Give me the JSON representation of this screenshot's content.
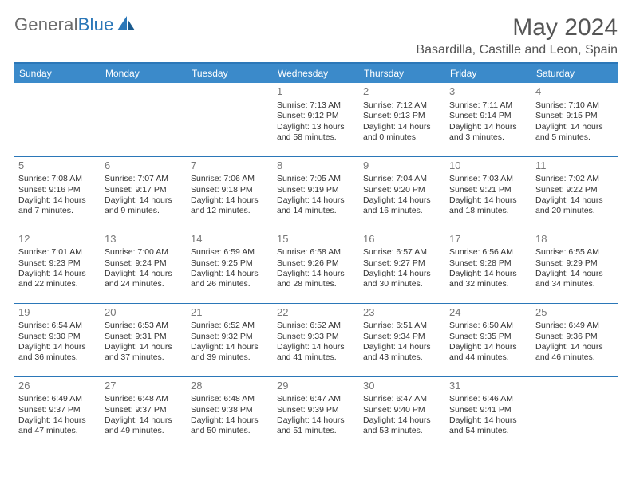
{
  "logo": {
    "text1": "General",
    "text2": "Blue"
  },
  "title": "May 2024",
  "location": "Basardilla, Castille and Leon, Spain",
  "colors": {
    "accent": "#3b8aca",
    "rule": "#2b77b8",
    "text": "#333333",
    "muted": "#777777"
  },
  "day_headers": [
    "Sunday",
    "Monday",
    "Tuesday",
    "Wednesday",
    "Thursday",
    "Friday",
    "Saturday"
  ],
  "weeks": [
    [
      null,
      null,
      null,
      {
        "d": "1",
        "sr": "Sunrise: 7:13 AM",
        "ss": "Sunset: 9:12 PM",
        "dl1": "Daylight: 13 hours",
        "dl2": "and 58 minutes."
      },
      {
        "d": "2",
        "sr": "Sunrise: 7:12 AM",
        "ss": "Sunset: 9:13 PM",
        "dl1": "Daylight: 14 hours",
        "dl2": "and 0 minutes."
      },
      {
        "d": "3",
        "sr": "Sunrise: 7:11 AM",
        "ss": "Sunset: 9:14 PM",
        "dl1": "Daylight: 14 hours",
        "dl2": "and 3 minutes."
      },
      {
        "d": "4",
        "sr": "Sunrise: 7:10 AM",
        "ss": "Sunset: 9:15 PM",
        "dl1": "Daylight: 14 hours",
        "dl2": "and 5 minutes."
      }
    ],
    [
      {
        "d": "5",
        "sr": "Sunrise: 7:08 AM",
        "ss": "Sunset: 9:16 PM",
        "dl1": "Daylight: 14 hours",
        "dl2": "and 7 minutes."
      },
      {
        "d": "6",
        "sr": "Sunrise: 7:07 AM",
        "ss": "Sunset: 9:17 PM",
        "dl1": "Daylight: 14 hours",
        "dl2": "and 9 minutes."
      },
      {
        "d": "7",
        "sr": "Sunrise: 7:06 AM",
        "ss": "Sunset: 9:18 PM",
        "dl1": "Daylight: 14 hours",
        "dl2": "and 12 minutes."
      },
      {
        "d": "8",
        "sr": "Sunrise: 7:05 AM",
        "ss": "Sunset: 9:19 PM",
        "dl1": "Daylight: 14 hours",
        "dl2": "and 14 minutes."
      },
      {
        "d": "9",
        "sr": "Sunrise: 7:04 AM",
        "ss": "Sunset: 9:20 PM",
        "dl1": "Daylight: 14 hours",
        "dl2": "and 16 minutes."
      },
      {
        "d": "10",
        "sr": "Sunrise: 7:03 AM",
        "ss": "Sunset: 9:21 PM",
        "dl1": "Daylight: 14 hours",
        "dl2": "and 18 minutes."
      },
      {
        "d": "11",
        "sr": "Sunrise: 7:02 AM",
        "ss": "Sunset: 9:22 PM",
        "dl1": "Daylight: 14 hours",
        "dl2": "and 20 minutes."
      }
    ],
    [
      {
        "d": "12",
        "sr": "Sunrise: 7:01 AM",
        "ss": "Sunset: 9:23 PM",
        "dl1": "Daylight: 14 hours",
        "dl2": "and 22 minutes."
      },
      {
        "d": "13",
        "sr": "Sunrise: 7:00 AM",
        "ss": "Sunset: 9:24 PM",
        "dl1": "Daylight: 14 hours",
        "dl2": "and 24 minutes."
      },
      {
        "d": "14",
        "sr": "Sunrise: 6:59 AM",
        "ss": "Sunset: 9:25 PM",
        "dl1": "Daylight: 14 hours",
        "dl2": "and 26 minutes."
      },
      {
        "d": "15",
        "sr": "Sunrise: 6:58 AM",
        "ss": "Sunset: 9:26 PM",
        "dl1": "Daylight: 14 hours",
        "dl2": "and 28 minutes."
      },
      {
        "d": "16",
        "sr": "Sunrise: 6:57 AM",
        "ss": "Sunset: 9:27 PM",
        "dl1": "Daylight: 14 hours",
        "dl2": "and 30 minutes."
      },
      {
        "d": "17",
        "sr": "Sunrise: 6:56 AM",
        "ss": "Sunset: 9:28 PM",
        "dl1": "Daylight: 14 hours",
        "dl2": "and 32 minutes."
      },
      {
        "d": "18",
        "sr": "Sunrise: 6:55 AM",
        "ss": "Sunset: 9:29 PM",
        "dl1": "Daylight: 14 hours",
        "dl2": "and 34 minutes."
      }
    ],
    [
      {
        "d": "19",
        "sr": "Sunrise: 6:54 AM",
        "ss": "Sunset: 9:30 PM",
        "dl1": "Daylight: 14 hours",
        "dl2": "and 36 minutes."
      },
      {
        "d": "20",
        "sr": "Sunrise: 6:53 AM",
        "ss": "Sunset: 9:31 PM",
        "dl1": "Daylight: 14 hours",
        "dl2": "and 37 minutes."
      },
      {
        "d": "21",
        "sr": "Sunrise: 6:52 AM",
        "ss": "Sunset: 9:32 PM",
        "dl1": "Daylight: 14 hours",
        "dl2": "and 39 minutes."
      },
      {
        "d": "22",
        "sr": "Sunrise: 6:52 AM",
        "ss": "Sunset: 9:33 PM",
        "dl1": "Daylight: 14 hours",
        "dl2": "and 41 minutes."
      },
      {
        "d": "23",
        "sr": "Sunrise: 6:51 AM",
        "ss": "Sunset: 9:34 PM",
        "dl1": "Daylight: 14 hours",
        "dl2": "and 43 minutes."
      },
      {
        "d": "24",
        "sr": "Sunrise: 6:50 AM",
        "ss": "Sunset: 9:35 PM",
        "dl1": "Daylight: 14 hours",
        "dl2": "and 44 minutes."
      },
      {
        "d": "25",
        "sr": "Sunrise: 6:49 AM",
        "ss": "Sunset: 9:36 PM",
        "dl1": "Daylight: 14 hours",
        "dl2": "and 46 minutes."
      }
    ],
    [
      {
        "d": "26",
        "sr": "Sunrise: 6:49 AM",
        "ss": "Sunset: 9:37 PM",
        "dl1": "Daylight: 14 hours",
        "dl2": "and 47 minutes."
      },
      {
        "d": "27",
        "sr": "Sunrise: 6:48 AM",
        "ss": "Sunset: 9:37 PM",
        "dl1": "Daylight: 14 hours",
        "dl2": "and 49 minutes."
      },
      {
        "d": "28",
        "sr": "Sunrise: 6:48 AM",
        "ss": "Sunset: 9:38 PM",
        "dl1": "Daylight: 14 hours",
        "dl2": "and 50 minutes."
      },
      {
        "d": "29",
        "sr": "Sunrise: 6:47 AM",
        "ss": "Sunset: 9:39 PM",
        "dl1": "Daylight: 14 hours",
        "dl2": "and 51 minutes."
      },
      {
        "d": "30",
        "sr": "Sunrise: 6:47 AM",
        "ss": "Sunset: 9:40 PM",
        "dl1": "Daylight: 14 hours",
        "dl2": "and 53 minutes."
      },
      {
        "d": "31",
        "sr": "Sunrise: 6:46 AM",
        "ss": "Sunset: 9:41 PM",
        "dl1": "Daylight: 14 hours",
        "dl2": "and 54 minutes."
      },
      null
    ]
  ]
}
